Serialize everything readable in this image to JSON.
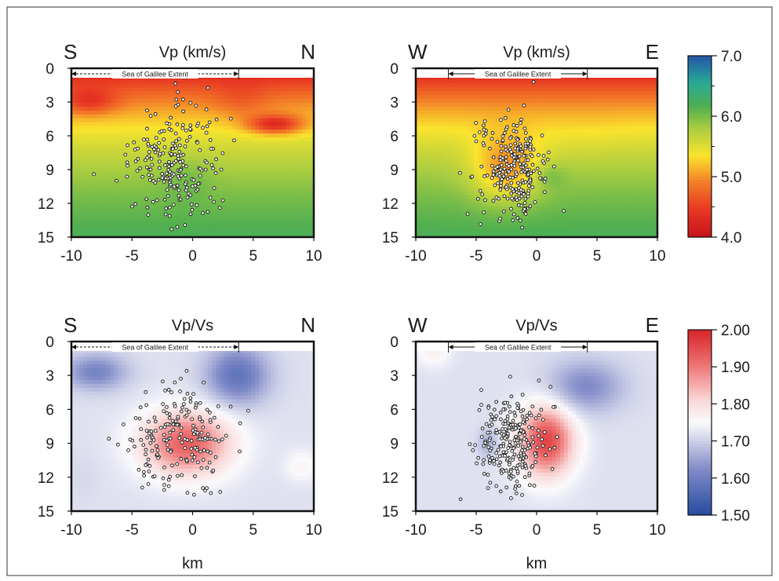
{
  "figure": {
    "xlabel": "km",
    "extent_label": "Sea of Galilee Extent"
  },
  "colorbars": [
    {
      "ticks": [
        "7.0",
        "6.0",
        "5.0",
        "4.0"
      ],
      "range": [
        4.0,
        7.0
      ]
    },
    {
      "ticks": [
        "2.00",
        "1.90",
        "1.80",
        "1.70",
        "1.60",
        "1.50"
      ],
      "range": [
        1.5,
        2.0
      ]
    }
  ],
  "chart_data": [
    {
      "type": "heatmap",
      "title": "Vp (km/s)",
      "left_label": "S",
      "right_label": "N",
      "x_ticks": [
        "-10",
        "-5",
        "0",
        "5",
        "10"
      ],
      "y_ticks": [
        "0",
        "3",
        "6",
        "9",
        "12",
        "15"
      ],
      "xlim": [
        -10,
        10
      ],
      "ylim": [
        15,
        0
      ],
      "colormap": "red-yellow-green-blue",
      "value_range": [
        4.0,
        7.0
      ],
      "extent": {
        "from": -10,
        "to": 3.8
      },
      "features": [
        {
          "x": -8.5,
          "y": 3,
          "value": 4.4,
          "sx": 1.6,
          "sy": 0.8
        },
        {
          "x": 4,
          "y": 3,
          "value": 4.7,
          "sx": 1.6,
          "sy": 1.1
        },
        {
          "x": 6.8,
          "y": 5,
          "value": 4.3,
          "sx": 1.6,
          "sy": 0.6
        },
        {
          "x": -0.5,
          "y": 9.5,
          "value": 6.0,
          "sx": 1.4,
          "sy": 1.4
        }
      ],
      "seismicity": {
        "count": 220,
        "center": [
          -1.5,
          8.5
        ],
        "spread": [
          1.9,
          2.5
        ]
      }
    },
    {
      "type": "heatmap",
      "title": "Vp (km/s)",
      "left_label": "W",
      "right_label": "E",
      "x_ticks": [
        "-10",
        "-5",
        "0",
        "5",
        "10"
      ],
      "y_ticks": [
        "0",
        "3",
        "6",
        "9",
        "12",
        "15"
      ],
      "xlim": [
        -10,
        10
      ],
      "ylim": [
        15,
        0
      ],
      "colormap": "red-yellow-green-blue",
      "value_range": [
        4.0,
        7.0
      ],
      "extent": {
        "from": -7.3,
        "to": 4.2
      },
      "features": [
        {
          "x": -2.5,
          "y": 9,
          "value": 5.0,
          "sx": 2.0,
          "sy": 2.0
        },
        {
          "x": 4,
          "y": 6,
          "value": 5.4,
          "sx": 2.4,
          "sy": 1.4
        },
        {
          "x": 1,
          "y": 9.5,
          "value": 6.1,
          "sx": 1.0,
          "sy": 0.8
        }
      ],
      "seismicity": {
        "count": 260,
        "center": [
          -2,
          9
        ],
        "spread": [
          1.4,
          2.2
        ]
      }
    },
    {
      "type": "heatmap",
      "title": "Vp/Vs",
      "left_label": "S",
      "right_label": "N",
      "x_ticks": [
        "-10",
        "-5",
        "0",
        "5",
        "10"
      ],
      "y_ticks": [
        "0",
        "3",
        "6",
        "9",
        "12",
        "15"
      ],
      "xlim": [
        -10,
        10
      ],
      "ylim": [
        15,
        0
      ],
      "colormap": "blue-white-red",
      "value_range": [
        1.5,
        2.0
      ],
      "extent": {
        "from": -10,
        "to": 3.8
      },
      "features": [
        {
          "x": -8,
          "y": 2.7,
          "value": 1.61,
          "sx": 1.8,
          "sy": 1.1
        },
        {
          "x": 3.7,
          "y": 3,
          "value": 1.58,
          "sx": 1.8,
          "sy": 1.8
        },
        {
          "x": -0.5,
          "y": 9,
          "value": 1.93,
          "sx": 2.6,
          "sy": 2.0
        },
        {
          "x": 9,
          "y": 11,
          "value": 1.76,
          "sx": 1.0,
          "sy": 1.0
        },
        {
          "x": -9,
          "y": 12,
          "value": 1.71,
          "sx": 0.9,
          "sy": 1.4
        }
      ],
      "seismicity": {
        "count": 200,
        "center": [
          -1,
          8.5
        ],
        "spread": [
          2.2,
          2.4
        ]
      }
    },
    {
      "type": "heatmap",
      "title": "Vp/Vs",
      "left_label": "W",
      "right_label": "E",
      "x_ticks": [
        "-10",
        "-5",
        "0",
        "5",
        "10"
      ],
      "y_ticks": [
        "0",
        "3",
        "6",
        "9",
        "12",
        "15"
      ],
      "xlim": [
        -10,
        10
      ],
      "ylim": [
        15,
        0
      ],
      "colormap": "blue-white-red",
      "value_range": [
        1.5,
        2.0
      ],
      "extent": {
        "from": -7.3,
        "to": 4.2
      },
      "features": [
        {
          "x": 4,
          "y": 4,
          "value": 1.62,
          "sx": 2.2,
          "sy": 1.6
        },
        {
          "x": 0.8,
          "y": 8.8,
          "value": 1.96,
          "sx": 1.6,
          "sy": 2.2
        },
        {
          "x": -4,
          "y": 9,
          "value": 1.66,
          "sx": 0.6,
          "sy": 0.9
        },
        {
          "x": -8.5,
          "y": 0.8,
          "value": 1.77,
          "sx": 1.0,
          "sy": 1.0
        }
      ],
      "seismicity": {
        "count": 250,
        "center": [
          -2,
          9
        ],
        "spread": [
          1.5,
          2.3
        ]
      }
    }
  ]
}
